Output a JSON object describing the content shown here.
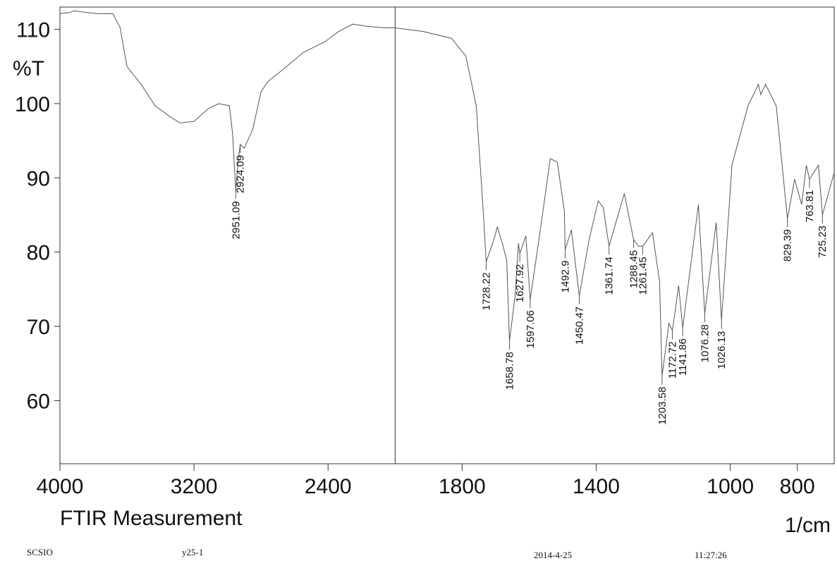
{
  "chart_data": {
    "type": "line",
    "x_title": "FTIR Measurement",
    "x_unit": "1/cm",
    "y_title": "%T",
    "xlim": [
      4000,
      690
    ],
    "ylim": [
      51.5,
      113
    ],
    "x_break": 2000,
    "x_break_scale": 2,
    "xticks": [
      4000,
      3200,
      2400,
      1800,
      1400,
      1000,
      800
    ],
    "yticks": [
      60,
      70,
      80,
      90,
      100,
      110
    ],
    "color": "#555555",
    "x": [
      4000,
      3937,
      3916,
      3853,
      3768,
      3684,
      3642,
      3600,
      3516,
      3432,
      3347,
      3284,
      3200,
      3116,
      3053,
      2989,
      2970,
      2951.09,
      2938,
      2924.09,
      2900,
      2850,
      2800,
      2758,
      2674,
      2547,
      2421,
      2337,
      2253,
      2168,
      2063,
      2000,
      1916,
      1832,
      1789,
      1758,
      1737,
      1728.22,
      1705,
      1695,
      1680,
      1667,
      1658.78,
      1642,
      1632,
      1627.92,
      1610,
      1597.06,
      1568,
      1537,
      1516,
      1495,
      1492.9,
      1474,
      1450.47,
      1421,
      1394,
      1379,
      1361.74,
      1316,
      1288.45,
      1274,
      1261.45,
      1232,
      1211,
      1203.58,
      1183,
      1172.72,
      1154,
      1141.86,
      1095,
      1076.28,
      1042,
      1026.13,
      995,
      947,
      916,
      909,
      895,
      863,
      829.39,
      808,
      787,
      773,
      763.81,
      737,
      725.23,
      690
    ],
    "values": [
      112.1,
      112.3,
      112.5,
      112.3,
      112.1,
      112.1,
      110.3,
      105,
      102.6,
      99.7,
      98.3,
      97.4,
      97.6,
      99.3,
      100,
      99.7,
      96,
      88.3,
      92,
      94.5,
      94,
      96.5,
      101.6,
      103,
      104.5,
      106.9,
      108.3,
      109.7,
      110.7,
      110.4,
      110.2,
      110.2,
      109.7,
      108.8,
      106.4,
      99.7,
      85.5,
      78.7,
      81.7,
      83.4,
      81.2,
      78.9,
      68,
      74.1,
      81.2,
      79.8,
      82.2,
      73.6,
      82.6,
      92.6,
      92.1,
      85.5,
      80.3,
      83,
      74.1,
      81.7,
      86.9,
      86,
      80.8,
      87.9,
      81.7,
      80.8,
      80.8,
      82.6,
      76,
      63.3,
      70.4,
      69.4,
      75.5,
      69.8,
      86.4,
      71.7,
      84,
      70.8,
      91.7,
      99.7,
      102.6,
      101.2,
      102.6,
      99.7,
      84.5,
      89.8,
      86.4,
      91.7,
      89.8,
      91.7,
      85,
      90.7
    ],
    "peaks": [
      {
        "x": 2951.09,
        "y": 88.3
      },
      {
        "x": 2924.09,
        "y": 94.5
      },
      {
        "x": 1728.22,
        "y": 78.7
      },
      {
        "x": 1658.78,
        "y": 68
      },
      {
        "x": 1627.92,
        "y": 79.8
      },
      {
        "x": 1597.06,
        "y": 73.6
      },
      {
        "x": 1492.9,
        "y": 80.3
      },
      {
        "x": 1450.47,
        "y": 74.1
      },
      {
        "x": 1361.74,
        "y": 80.8
      },
      {
        "x": 1288.45,
        "y": 81.7
      },
      {
        "x": 1261.45,
        "y": 80.8
      },
      {
        "x": 1203.58,
        "y": 63.3
      },
      {
        "x": 1172.72,
        "y": 69.4
      },
      {
        "x": 1141.86,
        "y": 69.8
      },
      {
        "x": 1076.28,
        "y": 71.7
      },
      {
        "x": 1026.13,
        "y": 70.8
      },
      {
        "x": 829.39,
        "y": 84.5
      },
      {
        "x": 763.81,
        "y": 89.8
      },
      {
        "x": 725.23,
        "y": 85
      }
    ],
    "footer": [
      "SCSIO",
      "y25-1",
      "2014-4-25",
      "11:27:26"
    ]
  }
}
